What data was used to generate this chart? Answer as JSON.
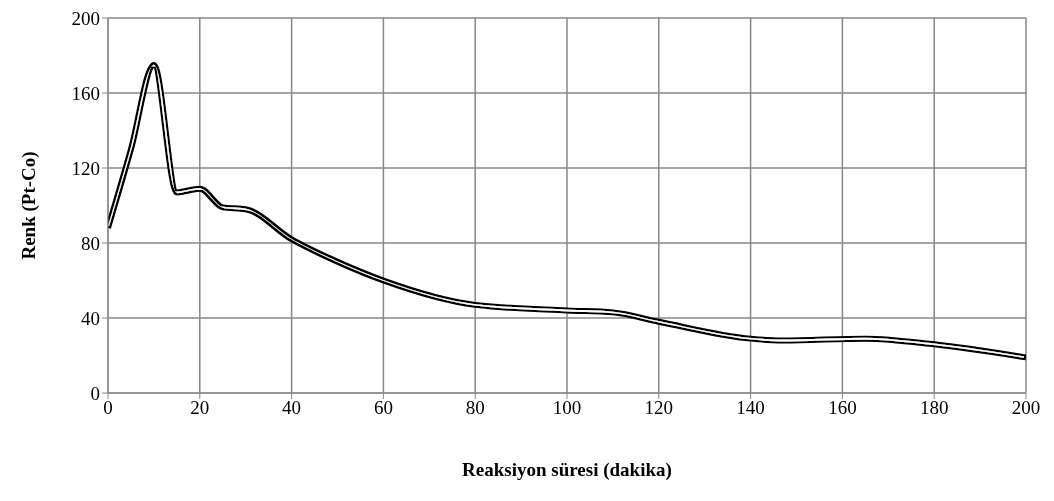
{
  "chart_data": {
    "type": "line",
    "xlabel": "Reaksiyon süresi (dakika)",
    "ylabel": "Renk (Pt-Co)",
    "x": [
      0,
      5,
      10,
      15,
      20,
      25,
      30,
      40,
      50,
      60,
      80,
      100,
      110,
      120,
      140,
      147,
      165,
      180,
      200
    ],
    "series": [
      {
        "color": "#000000",
        "values": [
          88,
          130,
          175,
          107,
          109,
          99,
          98,
          82,
          70,
          60,
          47,
          44,
          43,
          38,
          29,
          28,
          29,
          26,
          19
        ]
      }
    ],
    "xlim": [
      0,
      200
    ],
    "xticks": [
      0,
      20,
      40,
      60,
      80,
      100,
      120,
      140,
      160,
      180,
      200
    ],
    "ylim": [
      0,
      200
    ],
    "yticks": [
      0,
      40,
      80,
      120,
      160,
      200
    ],
    "grid": true,
    "legend": false,
    "marker": "none",
    "line_style": "solid"
  }
}
